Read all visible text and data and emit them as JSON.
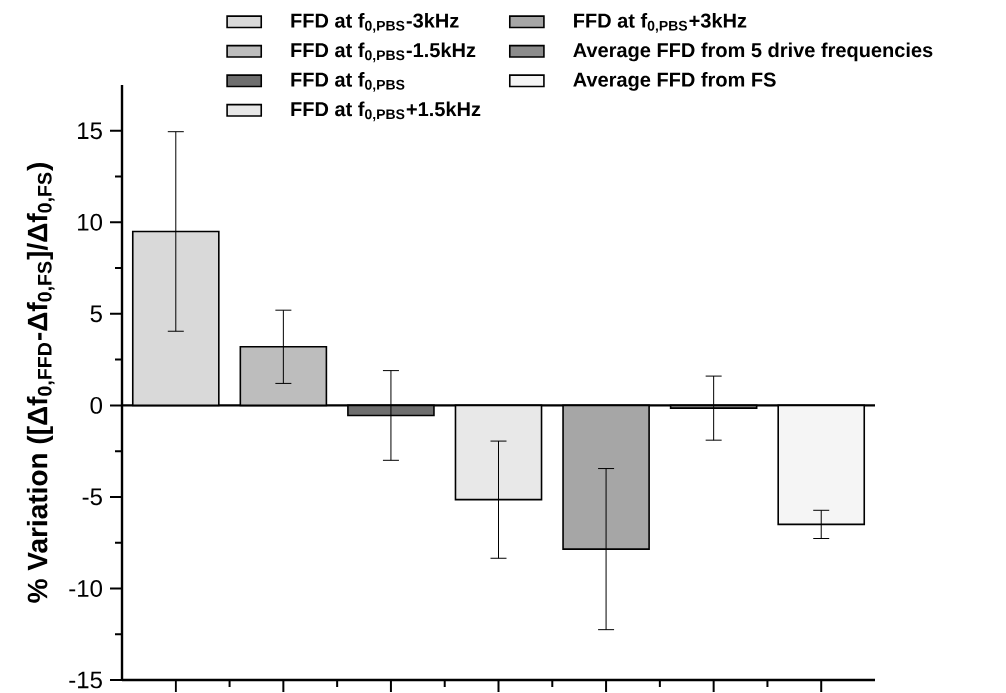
{
  "chart_data": {
    "type": "bar",
    "ylabel": "% Variation ([Δf$_{0,FFD}$-Δf$_{0,FS}$]/Δf$_{0,FS}$)",
    "categories": [
      null,
      null,
      null,
      null,
      null,
      null,
      null
    ],
    "series": [
      {
        "name": "FFD at f$_{0,PBS}$-3kHz",
        "color": "#d9d9d9",
        "values": [
          9.5,
          null,
          null,
          null,
          null,
          null,
          null
        ],
        "errors": [
          5.45,
          null,
          null,
          null,
          null,
          null,
          null
        ]
      },
      {
        "name": "FFD at f$_{0,PBS}$-1.5kHz",
        "color": "#bdbdbd",
        "values": [
          null,
          3.2,
          null,
          null,
          null,
          null,
          null
        ],
        "errors": [
          null,
          2.0,
          null,
          null,
          null,
          null,
          null
        ]
      },
      {
        "name": "FFD at f$_{0,PBS}$",
        "color": "#6e6e6e",
        "values": [
          null,
          null,
          -0.55,
          null,
          null,
          null,
          null
        ],
        "errors": [
          null,
          null,
          2.45,
          null,
          null,
          null,
          null
        ]
      },
      {
        "name": "FFD at f$_{0,PBS}$+1.5kHz",
        "color": "#e8e8e8",
        "values": [
          null,
          null,
          null,
          -5.15,
          null,
          null,
          null
        ],
        "errors": [
          null,
          null,
          null,
          3.2,
          null,
          null,
          null
        ]
      },
      {
        "name": "FFD at f$_{0,PBS}$+3kHz",
        "color": "#a6a6a6",
        "values": [
          null,
          null,
          null,
          null,
          -7.85,
          null,
          null
        ],
        "errors": [
          null,
          null,
          null,
          null,
          4.4,
          null,
          null
        ]
      },
      {
        "name": "Average FFD from 5 drive frequencies",
        "color": "#8c8c8c",
        "values": [
          null,
          null,
          null,
          null,
          null,
          -0.15,
          null
        ],
        "errors": [
          null,
          null,
          null,
          null,
          null,
          1.75,
          null
        ]
      },
      {
        "name": "Average FFD from FS",
        "color": "#f5f5f5",
        "values": [
          null,
          null,
          null,
          null,
          null,
          null,
          -6.5
        ],
        "errors": [
          null,
          null,
          null,
          null,
          null,
          null,
          0.77
        ]
      }
    ],
    "ylim": [
      -15,
      17.5
    ],
    "yticks": [
      -15,
      -10,
      -5,
      0,
      5,
      10,
      15
    ],
    "ref_lines": [
      {
        "axis": "y",
        "value": 0
      }
    ],
    "legend": "top",
    "tick_labels": "y",
    "grid": false
  }
}
